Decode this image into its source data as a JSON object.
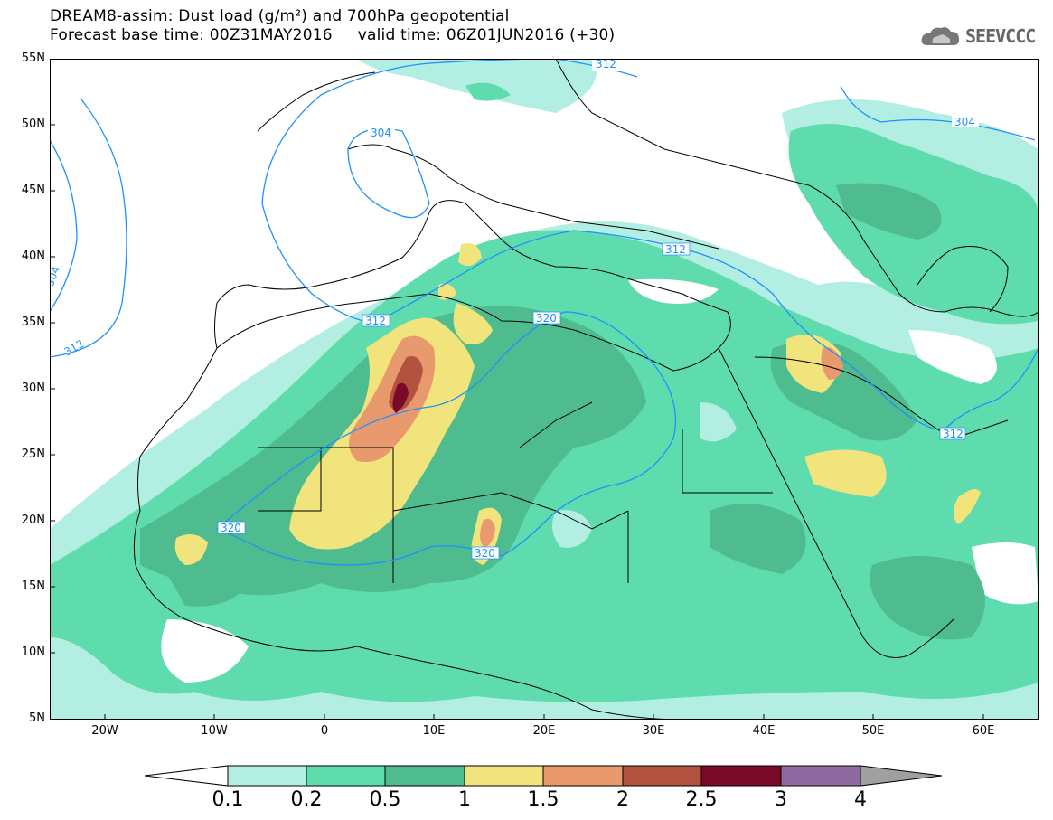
{
  "header": {
    "title_line1": "DREAM8-assim: Dust load (g/m²) and 700hPa geopotential",
    "title_line2": "Forecast base time: 00Z31MAY2016     valid time: 06Z01JUN2016 (+30)",
    "logo_text": "SEEVCCC"
  },
  "axes": {
    "lat_labels": [
      "55N",
      "50N",
      "45N",
      "40N",
      "35N",
      "30N",
      "25N",
      "20N",
      "15N",
      "10N",
      "5N"
    ],
    "lon_labels": [
      "20W",
      "10W",
      "0",
      "10E",
      "20E",
      "30E",
      "40E",
      "50E",
      "60E"
    ]
  },
  "contours": {
    "labels": [
      "312",
      "304",
      "304",
      "304",
      "312",
      "312",
      "312",
      "312",
      "320",
      "320",
      "320"
    ],
    "line_color": "#1e90ff"
  },
  "legend": {
    "labels": [
      "0.1",
      "0.2",
      "0.5",
      "1",
      "1.5",
      "2",
      "2.5",
      "3",
      "4"
    ],
    "colors": [
      "#ffffff",
      "#b3eee2",
      "#5fdcae",
      "#4fbc8f",
      "#f2e47c",
      "#e89a6e",
      "#b2523f",
      "#7a0a2a",
      "#8f6aa0",
      "#a0a0a0"
    ]
  }
}
